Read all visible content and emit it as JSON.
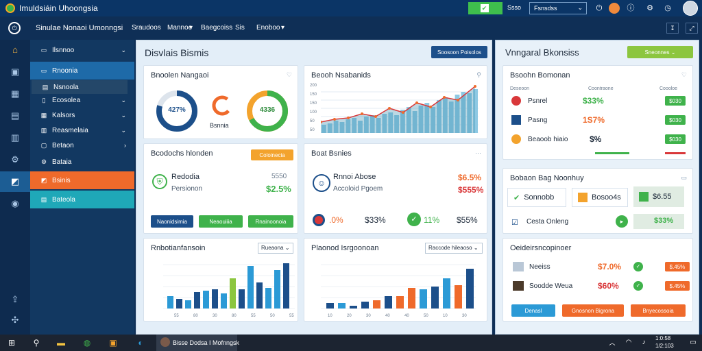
{
  "window": {
    "title": "Imuldsiáin Uhoongsia"
  },
  "titlebar": {
    "green_label": "",
    "lbl1": "Ssso",
    "select_value": "Fsnsdss"
  },
  "menubar": {
    "items": [
      "Sinulae Nonaoi Umonngsi",
      "Sraudoos",
      "Mannoe",
      "Baegcoiss",
      "Sis",
      "Enoboo"
    ]
  },
  "sidebar": {
    "items": [
      {
        "label": "Ilsnnoo",
        "chev": true
      },
      {
        "label": "Rnoonia",
        "chev": false
      },
      {
        "label": "Nsnoola",
        "chev": false
      },
      {
        "label": "Ecosolea",
        "chev": true
      },
      {
        "label": "Kalsors",
        "chev": true
      },
      {
        "label": "Reasmelaia",
        "chev": true
      },
      {
        "label": "Betaon",
        "chev": true
      },
      {
        "label": "Bataia",
        "chev": false
      },
      {
        "label": "Bsinis",
        "chev": false
      },
      {
        "label": "Bateola",
        "chev": false
      }
    ]
  },
  "main": {
    "title": "Disvlais Bismis",
    "btn": "Soosoon Poisolos",
    "c1": {
      "title": "Bnoolen Nangaoi",
      "d1": "427%",
      "d3": "4336",
      "mid_label": "Bsnnia"
    },
    "c2": {
      "title": "Beooh Nsabanids",
      "yticks": [
        "200",
        "150",
        "150",
        "100",
        "50",
        "50"
      ]
    },
    "c3": {
      "title": "Bcodochs hlonden",
      "badge": "Coloinecia",
      "l1": "Redodia",
      "l2": "Persionon",
      "r1": "5550",
      "r2": "$2.5%",
      "b1": "Naonidsimia",
      "b2": "Neaouiiia",
      "b3": "Rnainoonoia"
    },
    "c4": {
      "title": "Boat Bsnies",
      "l1": "Rnnoi Abose",
      "l2": "Accoloid Pgoem",
      "r1": "$6.5%",
      "r2": "$555%",
      "v1": ".0%",
      "v2": "$33%",
      "v3": "11%",
      "v4": "$55%"
    },
    "c5": {
      "title": "Rnbotianfansoin",
      "dd": "Rueaona",
      "xt": [
        "55",
        "80",
        "30",
        "80",
        "55",
        "50",
        "55"
      ]
    },
    "c6": {
      "title": "Plaonod Isrgoonoan",
      "dd": "Raccode hileaoso",
      "xt": [
        "10",
        "20",
        "30",
        "40",
        "40",
        "50",
        "10",
        "30"
      ]
    }
  },
  "right": {
    "title": "Vnngaral Bkonsiss",
    "btn": "Sneonnes",
    "c1": {
      "title": "Bsoohn Bomonan",
      "h1": "Deseoon",
      "h2": "Coontraone",
      "h3": "Coooloe",
      "rows": [
        {
          "name": "Psnrel",
          "val": "$33%",
          "pill": "$030"
        },
        {
          "name": "Pasng",
          "val": "1S7%",
          "pill": "$030"
        },
        {
          "name": "Beaoob hiaio",
          "val": "$%",
          "pill": "$030"
        }
      ]
    },
    "c2": {
      "title": "Bobaon Bag Noonhuy",
      "b1": "Sonnobb",
      "b2": "Bosoo4s",
      "b3": "$6.55",
      "r1": "Cesta Onleng",
      "r2": "$33%"
    },
    "c3": {
      "title": "Oeideirsncopinoer",
      "rows": [
        {
          "name": "Neeiss",
          "val": "$7.0%",
          "pill": "$.45%"
        },
        {
          "name": "Soodde Weua",
          "val": "$60%",
          "pill": "$.45%"
        }
      ],
      "b1": "Denasl",
      "b2": "Gnosnon Bigrona",
      "b3": "Bnyecossoia"
    }
  },
  "taskbar": {
    "app": "Bisse Dodsa I Mofnngsk",
    "time": "1:0:58",
    "date": "1/2:103"
  },
  "colors": {
    "accent": "#1c5d94",
    "orange": "#ef6a2b",
    "teal": "#1fa8b8",
    "green": "#3fb24b"
  }
}
